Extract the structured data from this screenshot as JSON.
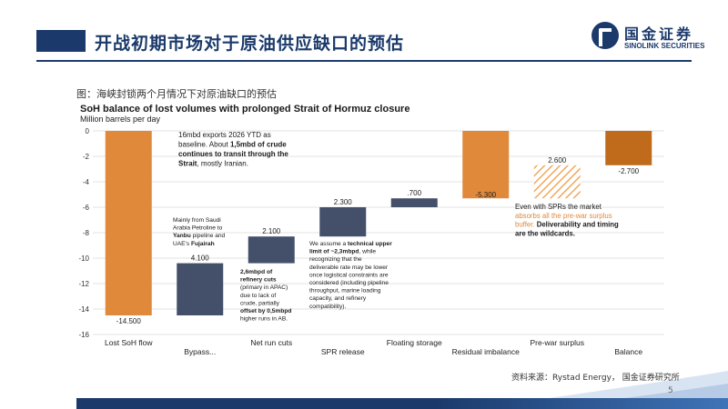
{
  "header": {
    "title": "开战初期市场对于原油供应缺口的预估"
  },
  "logo": {
    "name_cn": "国金证券",
    "name_en": "SINOLINK SECURITIES"
  },
  "figure": {
    "caption": "图：海峡封锁两个月情况下对原油缺口的预估"
  },
  "footer": {
    "source": "资料来源：Rystad Energy， 国金证券研究所",
    "page": "5"
  },
  "colors": {
    "orange": "#e0893a",
    "dark_orange": "#c06a1c",
    "navy": "#44506a",
    "title_navy": "#1b3a6b",
    "hatch": "#f2a65a"
  },
  "chart_data": {
    "type": "bar",
    "subtype": "waterfall",
    "title": "SoH balance of lost volumes with prolonged Strait of Hormuz closure",
    "subtitle": "Million barrels per day",
    "ylim": [
      -16,
      0
    ],
    "yticks": [
      "0",
      "-2",
      "-4",
      "-6",
      "-8",
      "-10",
      "-12",
      "-14",
      "-16"
    ],
    "grid": true,
    "categories": [
      "Lost SoH flow",
      "Bypass...",
      "Net run cuts",
      "SPR release",
      "Floating storage",
      "Residual  imbalance",
      "Pre-war surplus",
      "Balance"
    ],
    "bars": [
      {
        "start": 0,
        "end": -14.5,
        "label": "-14.500",
        "style": "orange"
      },
      {
        "start": -14.5,
        "end": -10.4,
        "label": "4.100",
        "style": "navy"
      },
      {
        "start": -10.4,
        "end": -8.3,
        "label": "2.100",
        "style": "navy"
      },
      {
        "start": -8.3,
        "end": -6.0,
        "label": "2.300",
        "style": "navy"
      },
      {
        "start": -6.0,
        "end": -5.3,
        "label": ".700",
        "style": "navy"
      },
      {
        "start": -5.3,
        "end": 0,
        "label": "-5.300",
        "style": "orange"
      },
      {
        "start": -5.3,
        "end": -2.7,
        "label": "2.600",
        "style": "hatch"
      },
      {
        "start": -2.7,
        "end": 0,
        "label": "-2.700",
        "style": "dark_orange"
      }
    ],
    "annotations": [
      {
        "lines": [
          [
            "16mbd exports 2026 YTD as",
            false
          ],
          [
            "baseline. About ",
            false,
            "1,5mbd of crude",
            true
          ],
          [
            "continues to transit through the",
            true
          ],
          [
            "Strait",
            true,
            ", mostly Iranian.",
            false
          ]
        ]
      },
      {
        "lines": [
          [
            "Mainly from Saudi",
            false
          ],
          [
            "Arabia Petroline to",
            false
          ],
          [
            "Yanbu",
            true,
            " pipeline and",
            false
          ],
          [
            "UAE's ",
            false,
            "Fujairah",
            true
          ]
        ]
      },
      {
        "lines": [
          [
            "2,6mbpd of",
            true
          ],
          [
            "refinery cuts",
            true
          ],
          [
            "(primary in APAC)",
            false
          ],
          [
            "due to lack of",
            false
          ],
          [
            "crude, partially",
            false
          ],
          [
            "offset by 0,5mbpd",
            true
          ],
          [
            "higher runs in AB.",
            false
          ]
        ]
      },
      {
        "lines": [
          [
            "We assume a ",
            false,
            "technical upper",
            true
          ],
          [
            "limit of ~2,3mbpd",
            true,
            ", while",
            false
          ],
          [
            "recognizing that the",
            false
          ],
          [
            "deliverable rate may be lower",
            false
          ],
          [
            "once logistical constraints are",
            false
          ],
          [
            "considered (including pipeline",
            false
          ],
          [
            "throughput, marine loading",
            false
          ],
          [
            "capacity, and refinery",
            false
          ],
          [
            "compatibility).",
            false
          ]
        ]
      },
      {
        "lines": [
          [
            "Even with SPRs the market",
            false
          ],
          [
            "absorbs all the pre-war surplus",
            false,
            "orange"
          ],
          [
            "buffer. ",
            false,
            "orange",
            "Deliverability and timing",
            true
          ],
          [
            "are the wildcards.",
            true
          ]
        ]
      }
    ]
  }
}
